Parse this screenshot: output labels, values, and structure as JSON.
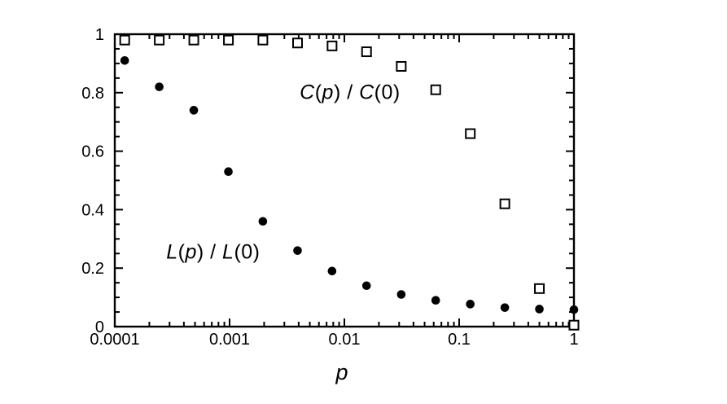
{
  "figure": {
    "background_color": "#ffffff",
    "ink_color": "#000000"
  },
  "chart_data": {
    "type": "scatter",
    "title": "",
    "xlabel": "p",
    "ylabel": "",
    "x_scale": "log",
    "xlim": [
      0.0001,
      1
    ],
    "ylim": [
      0,
      1
    ],
    "grid": false,
    "legend_position": "in-plot text labels",
    "x_tick_values": [
      0.0001,
      0.001,
      0.01,
      0.1,
      1
    ],
    "x_tick_labels": [
      "0.0001",
      "0.001",
      "0.01",
      "0.1",
      "1"
    ],
    "y_tick_values": [
      0,
      0.2,
      0.4,
      0.6,
      0.8,
      1
    ],
    "y_tick_labels": [
      "0",
      "0.2",
      "0.4",
      "0.6",
      "0.8",
      "1"
    ],
    "y_minor_step": 0.05,
    "x": [
      0.000122,
      0.000244,
      0.000488,
      0.000977,
      0.00195,
      0.00391,
      0.00781,
      0.0156,
      0.0313,
      0.0625,
      0.125,
      0.25,
      0.5,
      1
    ],
    "series": [
      {
        "name": "C(p) / C(0)",
        "marker": "open-square",
        "values": [
          0.98,
          0.98,
          0.98,
          0.98,
          0.98,
          0.97,
          0.96,
          0.94,
          0.89,
          0.81,
          0.66,
          0.42,
          0.13,
          0.005
        ],
        "label_anchor": {
          "x": 0.0112,
          "y": 0.8
        }
      },
      {
        "name": "L(p) / L(0)",
        "marker": "filled-circle",
        "values": [
          0.91,
          0.82,
          0.74,
          0.53,
          0.36,
          0.26,
          0.19,
          0.14,
          0.11,
          0.09,
          0.077,
          0.065,
          0.06,
          0.058
        ],
        "label_anchor": {
          "x": 0.00072,
          "y": 0.253
        }
      }
    ]
  }
}
